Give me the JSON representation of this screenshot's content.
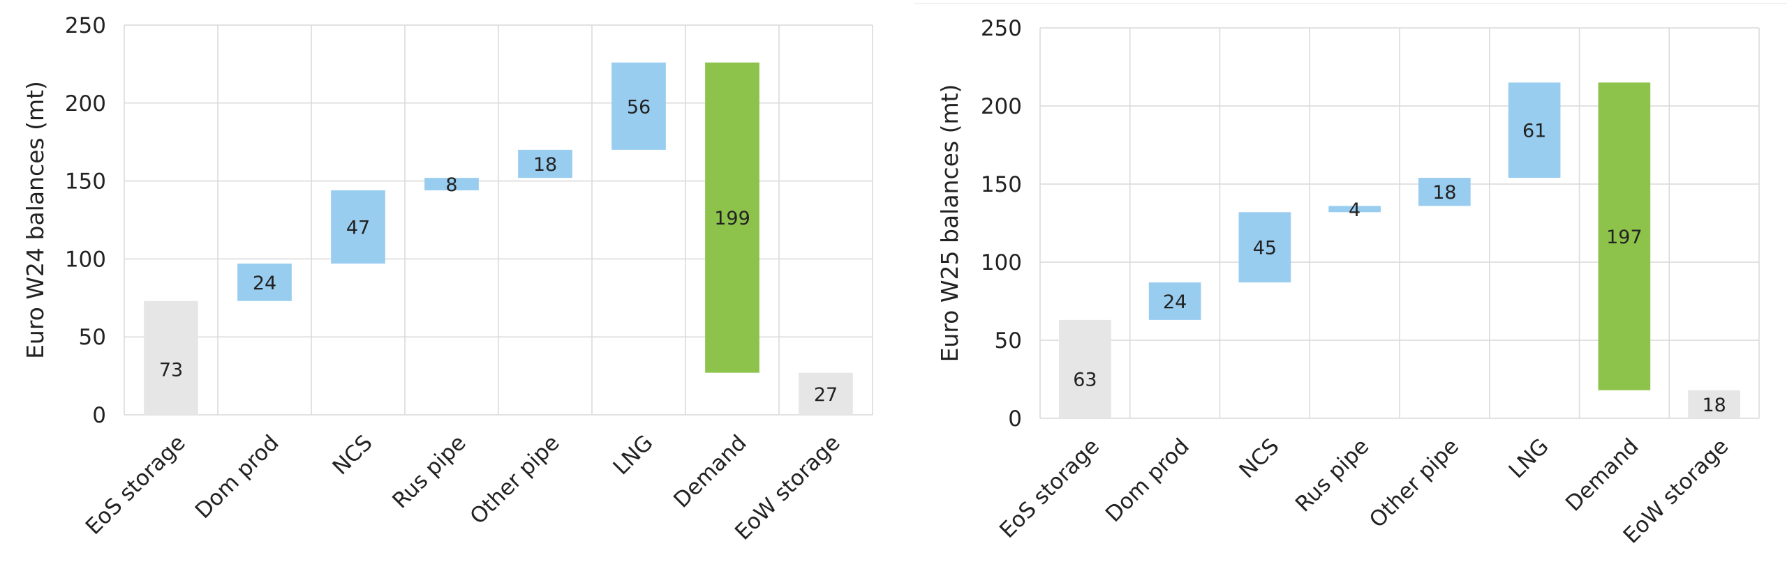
{
  "colors": {
    "storage": "#e6e6e6",
    "supply": "#99cdf0",
    "demand": "#8dc34b",
    "grid": "#d9d9d9",
    "text": "#222222"
  },
  "chart_data": [
    {
      "type": "bar",
      "subtype": "waterfall",
      "ylabel": "Euro W24 balances (mt)",
      "ylim": [
        0,
        250
      ],
      "yticks": [
        0,
        50,
        100,
        150,
        200,
        250
      ],
      "grid": true,
      "categories": [
        "EoS storage",
        "Dom prod",
        "NCS",
        "Rus pipe",
        "Other pipe",
        "LNG",
        "Demand",
        "EoW storage"
      ],
      "values": [
        73,
        24,
        47,
        8,
        18,
        56,
        199,
        27
      ],
      "labels": [
        "73",
        "24",
        "47",
        "8",
        "18",
        "56",
        "199",
        "27"
      ],
      "bar_kinds": [
        "storage",
        "supply",
        "supply",
        "supply",
        "supply",
        "supply",
        "demand",
        "storage"
      ]
    },
    {
      "type": "bar",
      "subtype": "waterfall",
      "ylabel": "Euro W25 balances (mt)",
      "ylim": [
        0,
        250
      ],
      "yticks": [
        0,
        50,
        100,
        150,
        200,
        250
      ],
      "grid": true,
      "categories": [
        "EoS storage",
        "Dom prod",
        "NCS",
        "Rus pipe",
        "Other pipe",
        "LNG",
        "Demand",
        "EoW storage"
      ],
      "values": [
        63,
        24,
        45,
        4,
        18,
        61,
        197,
        18
      ],
      "labels": [
        "63",
        "24",
        "45",
        "4",
        "18",
        "61",
        "197",
        "18"
      ],
      "bar_kinds": [
        "storage",
        "supply",
        "supply",
        "supply",
        "supply",
        "supply",
        "demand",
        "storage"
      ]
    }
  ]
}
